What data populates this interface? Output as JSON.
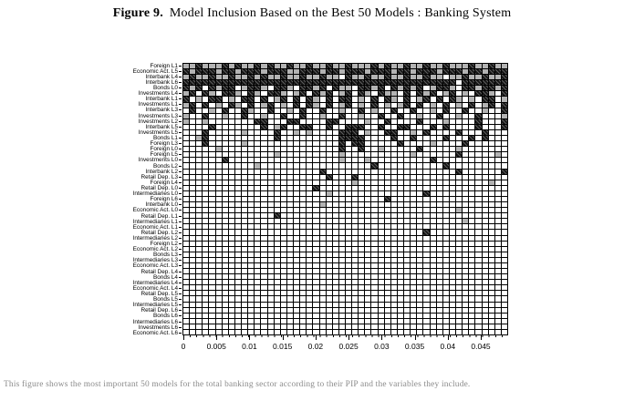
{
  "title": {
    "label": "Figure 9.",
    "text": "Model Inclusion Based on the Best 50 Models : Banking System"
  },
  "caption": "This figure shows the most important 50 models for the total banking sector according to their PIP and the variables they include.",
  "chart_data": {
    "type": "heatmap",
    "n_models": 50,
    "x_axis": {
      "ticks": [
        0,
        0.005,
        0.01,
        0.015,
        0.02,
        0.025,
        0.03,
        0.035,
        0.04,
        0.045
      ],
      "tick_labels": [
        "0",
        "0.005",
        "0.01",
        "0.015",
        "0.02",
        "0.025",
        "0.03",
        "0.035",
        "0.04",
        "0.045"
      ],
      "range": [
        0,
        0.049
      ]
    },
    "cell_codes": {
      ".": "not included",
      "g": "included (gray)",
      "b": "included (black hatched)"
    },
    "colors": {
      "gray_cell": "#b3b3b3",
      "black_cell": "#141414",
      "grid_line": "#000000",
      "background": "#ffffff",
      "caption_text": "#8a8a8a"
    },
    "rows": [
      {
        "label": "Foreign L1",
        "cells": "ggbgggbgbggbgbggbggbggbggbgggbgbggbggbggbgggbggbgg"
      },
      {
        "label": "Economic Act. L5",
        "cells": "bgbbbgbbgbbbgbbbggbbbgbbgbbbgbbbgbbgbbbgbbbgbbgbbb"
      },
      {
        "label": "Interbank L4",
        "cells": "gbggbggbggbgbggbggbggbgg.bggbggbggbggbgg.ggbggbggb"
      },
      {
        "label": "Interbank L6",
        "cells": "bbbbbbbbbbbbbbbbbbbbbbbbbbbbbbbbbbbbbbbbbb.bbbbbbb"
      },
      {
        "label": "Bonds L0",
        "cells": "bgb.bgbb.gbbg.bbg.bbgb.bgg.bbgb.bgbgb.gbbg.bbgbbgb"
      },
      {
        "label": "Investments L4",
        "cells": "gb.bg.bbg.bg.bbg.gb.bgb.gb.bg.bgg.b.bgb.gb.g.bbg.b"
      },
      {
        "label": "Interbank L1",
        "cells": "b.g.bb.g.bb.b.gb.b.bg.b.bb.g.b.bg.b.gb.b.bg.g.bb.g"
      },
      {
        "label": "Investments L1",
        "cells": "gb.b.g.bg.b.gb.g.b.bg.b.gb.g.b.g.gb.b.g.b.g.b.gb.b"
      },
      {
        "label": "Interbank L3",
        "cells": ".b..g.b..bg..b..g.b..b..g..b.g..b..b..g.b..b..g..b"
      },
      {
        "label": "Investments L3",
        "cells": "g..b..g..b..g..b..b..g..b..g..b..b..g..b..g..b...g"
      },
      {
        "label": "Investments L2",
        "cells": "g..g.......bb...bb....bb....g..b....b...g....b...b"
      },
      {
        "label": "Interbank L5",
        "cells": "....b.......b.gb..bb..b..bbb..b..bb...b.b....b...b"
      },
      {
        "label": "Investments L5",
        "cells": "...b.....g....b..g.g....bbb.g..bb..g.b....b...b..."
      },
      {
        "label": "Bonds L1",
        "cells": "..gb..........b.........bbbb....b..b....b...b.b..."
      },
      {
        "label": "Foreign L3",
        "cells": "...b.....g..............b.bb.....b....g....b......"
      },
      {
        "label": "Foreign L0",
        "cells": ".....g..................b..b..g.....b.....g......."
      },
      {
        "label": "Foreign L5",
        "cells": "..............g.........g..........g......b.....g."
      },
      {
        "label": "Investments L0",
        "cells": "......b.................g...g.........b..........."
      },
      {
        "label": "Bonds L2",
        "cells": "...........g.................b..........b........."
      },
      {
        "label": "Interbank L2",
        "cells": ".....................b....................b......b"
      },
      {
        "label": "Retail Dep. L3",
        "cells": "......................b...b......................."
      },
      {
        "label": "Foreign L4",
        "cells": "..........................g....................g.."
      },
      {
        "label": "Retail Dep. L0",
        "cells": "....................b............................."
      },
      {
        "label": "Intermediaries L0",
        "cells": "......................g..............b............"
      },
      {
        "label": "Foreign L6",
        "cells": "...............................b.................."
      },
      {
        "label": "Interbank L0",
        "cells": ".....................g............................"
      },
      {
        "label": "Economic Act. L0",
        "cells": "..........................................g......."
      },
      {
        "label": "Retail Dep. L1",
        "cells": "..............b..................................."
      },
      {
        "label": "Intermediaries L1",
        "cells": "...........................................g......"
      },
      {
        "label": "Economic Act. L1",
        "cells": ".................................................."
      },
      {
        "label": "Retail Dep. L2",
        "cells": ".....................................b............"
      },
      {
        "label": "Intermediaries L2",
        "cells": ".................................................."
      },
      {
        "label": "Foreign L2",
        "cells": ".................................................."
      },
      {
        "label": "Economic Act. L2",
        "cells": ".................................................."
      },
      {
        "label": "Bonds L3",
        "cells": ".................................................."
      },
      {
        "label": "Intermediaries L3",
        "cells": ".................................................."
      },
      {
        "label": "Economic Act. L3",
        "cells": ".................................................."
      },
      {
        "label": "Retail Dep. L4",
        "cells": ".................................................."
      },
      {
        "label": "Bonds L4",
        "cells": ".................................................."
      },
      {
        "label": "Intermediaries L4",
        "cells": ".................................................."
      },
      {
        "label": "Economic Act. L4",
        "cells": ".................................................."
      },
      {
        "label": "Retail Dep. L5",
        "cells": ".................................................."
      },
      {
        "label": "Bonds L5",
        "cells": ".................................................."
      },
      {
        "label": "Intermediaries L5",
        "cells": ".................................................."
      },
      {
        "label": "Retail Dep. L6",
        "cells": ".................................................."
      },
      {
        "label": "Bonds L6",
        "cells": ".................................................."
      },
      {
        "label": "Intermediaries L6",
        "cells": ".................................................."
      },
      {
        "label": "Investments L6",
        "cells": ".................................................."
      },
      {
        "label": "Economic Act. L6",
        "cells": ".................................................."
      }
    ]
  }
}
